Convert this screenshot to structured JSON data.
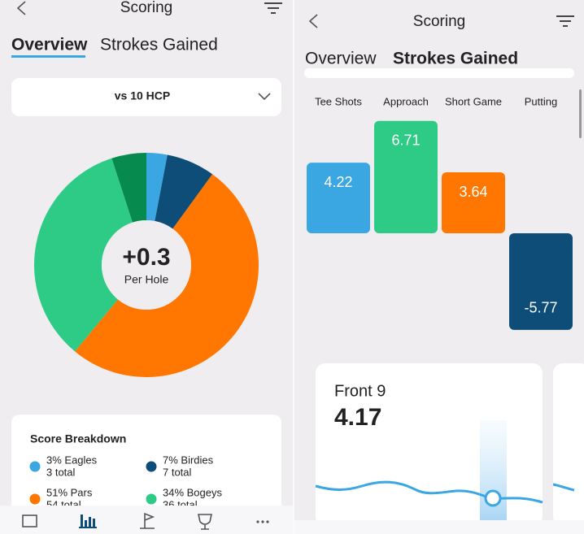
{
  "left_screen": {
    "header": {
      "title": "Scoring"
    },
    "tabs": [
      "Overview",
      "Strokes Gained"
    ],
    "dropdown": "vs 10 HCP",
    "donut": {
      "center_value": "+0.3",
      "center_label": "Per Hole",
      "values": [
        3,
        7,
        51,
        34,
        5
      ],
      "colors": [
        "#3aa6e2",
        "#0d4d78",
        "#ff7700",
        "#2ecb86",
        "#078a4e"
      ]
    },
    "breakdown": {
      "title": "Score Breakdown",
      "items": [
        {
          "label": "3% Eagles",
          "total": "3 total",
          "color": "#3aa6e2"
        },
        {
          "label": "7% Birdies",
          "total": "7 total",
          "color": "#0d4d78"
        },
        {
          "label": "51% Pars",
          "total": "54 total",
          "color": "#ff7700"
        },
        {
          "label": "34% Bogeys",
          "total": "36 total",
          "color": "#2ecb86"
        }
      ]
    }
  },
  "right_screen": {
    "header": {
      "title": "Scoring"
    },
    "tabs": [
      "Overview",
      "Strokes Gained"
    ],
    "strokes_gained": {
      "categories": [
        "Tee Shots",
        "Approach",
        "Short Game",
        "Putting"
      ],
      "values": [
        4.22,
        6.71,
        3.64,
        -5.77
      ],
      "colors": [
        "#3aa6e2",
        "#2ecb86",
        "#ff7700",
        "#0d4d78"
      ]
    },
    "card": {
      "title": "Front 9",
      "value": "4.17"
    }
  }
}
